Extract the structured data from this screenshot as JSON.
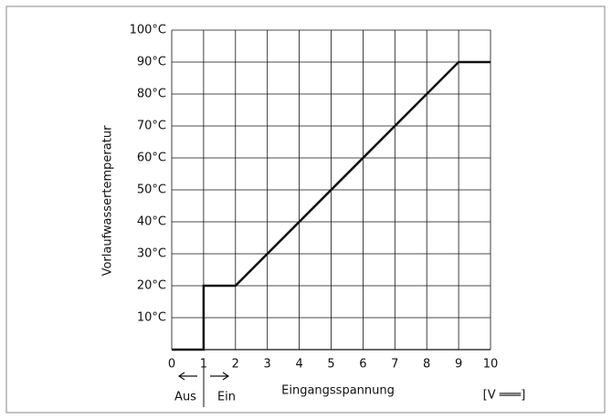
{
  "chart_data": {
    "type": "line",
    "y_label": "Vorlaufwassertemperatur",
    "x_label": "Eingangsspannung",
    "unit_label": "[V ═══]",
    "off_label": "Aus",
    "on_label": "Ein",
    "x": [
      0,
      1,
      1,
      2,
      9,
      10
    ],
    "series": [
      {
        "color": "#111111",
        "values": [
          0,
          0,
          20,
          20,
          90,
          90
        ]
      }
    ],
    "xlim": [
      0,
      10
    ],
    "xticks": [
      0,
      1,
      2,
      3,
      4,
      5,
      6,
      7,
      8,
      9,
      10
    ],
    "ylim": [
      0,
      100
    ],
    "yticks": [
      {
        "value": 10,
        "label": "10°C"
      },
      {
        "value": 20,
        "label": "20°C"
      },
      {
        "value": 30,
        "label": "30°C"
      },
      {
        "value": 40,
        "label": "40°C"
      },
      {
        "value": 50,
        "label": "50°C"
      },
      {
        "value": 60,
        "label": "60°C"
      },
      {
        "value": 70,
        "label": "70°C"
      },
      {
        "value": 80,
        "label": "80°C"
      },
      {
        "value": 90,
        "label": "90°C"
      },
      {
        "value": 100,
        "label": "100°C"
      }
    ],
    "grid": true
  }
}
